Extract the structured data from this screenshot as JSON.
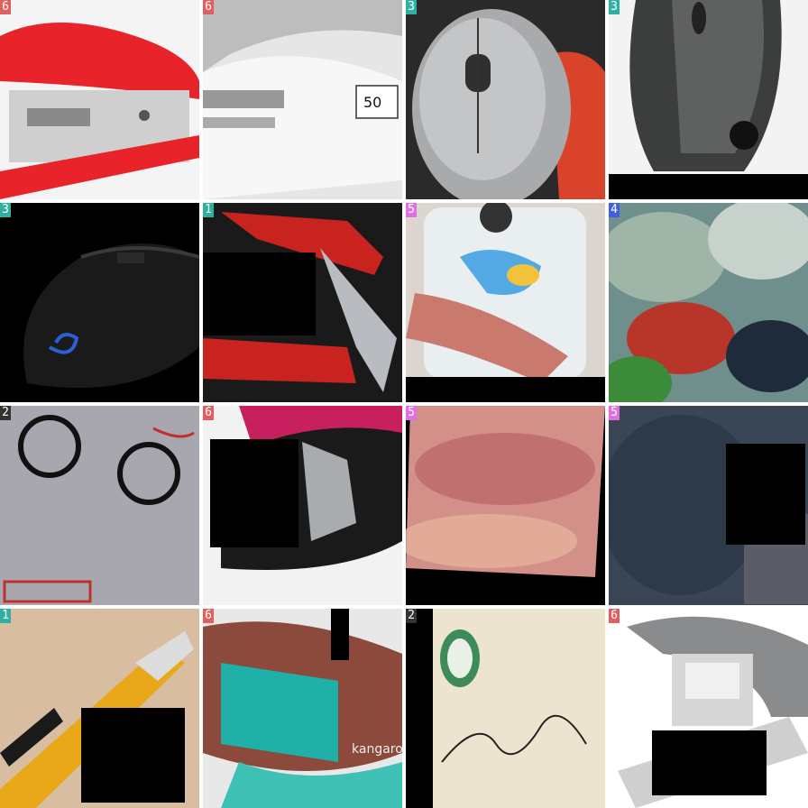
{
  "tiles": [
    {
      "label": "6",
      "badge_color": "#e06060",
      "name": "red-stapler"
    },
    {
      "label": "6",
      "badge_color": "#e06060",
      "name": "white-stapler"
    },
    {
      "label": "3",
      "badge_color": "#30b0a0",
      "name": "grey-mouse-in-hand"
    },
    {
      "label": "3",
      "badge_color": "#30b0a0",
      "name": "logitech-mouse"
    },
    {
      "label": "3",
      "badge_color": "#30b0a0",
      "name": "black-gaming-mouse"
    },
    {
      "label": "1",
      "badge_color": "#30b0a0",
      "name": "red-utility-knife"
    },
    {
      "label": "5",
      "badge_color": "#e070e0",
      "name": "phone-case-in-hand"
    },
    {
      "label": "4",
      "badge_color": "#4060e0",
      "name": "blurry-colorful-object"
    },
    {
      "label": "2",
      "badge_color": "#ffffff",
      "name": "postage-stamps"
    },
    {
      "label": "6",
      "badge_color": "#e06060",
      "name": "black-pink-stapler"
    },
    {
      "label": "5",
      "badge_color": "#e070e0",
      "name": "blurry-pink-closeup"
    },
    {
      "label": "5",
      "badge_color": "#e070e0",
      "name": "blurry-dark-closeup"
    },
    {
      "label": "1",
      "badge_color": "#30b0a0",
      "name": "yellow-box-cutter"
    },
    {
      "label": "6",
      "badge_color": "#e06060",
      "name": "teal-kangaro-stapler"
    },
    {
      "label": "2",
      "badge_color": "#ffffff",
      "name": "old-envelope"
    },
    {
      "label": "6",
      "badge_color": "#e06060",
      "name": "grey-heavy-stapler"
    }
  ],
  "texts": {
    "box_label": "50",
    "brand_kangaro": "kangaro"
  }
}
